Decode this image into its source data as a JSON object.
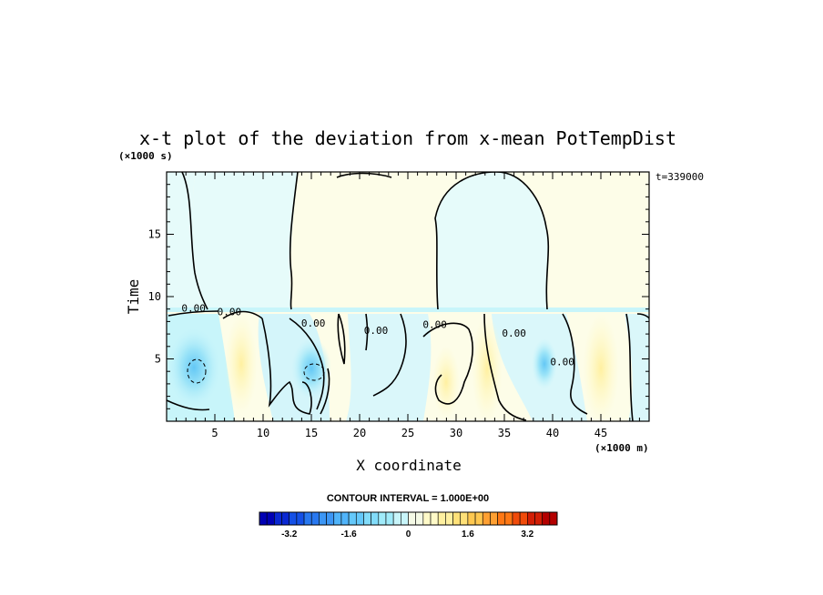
{
  "chart_data": {
    "type": "heatmap",
    "title": "x-t plot of the deviation from x-mean PotTempDist",
    "xlabel": "X coordinate",
    "ylabel": "Time",
    "x_unit": "(×1000 m)",
    "y_unit": "(×1000 s)",
    "annotation": "t=339000",
    "xlim": [
      0,
      50
    ],
    "ylim": [
      0,
      20
    ],
    "x_ticks": [
      5,
      10,
      15,
      20,
      25,
      30,
      35,
      40,
      45
    ],
    "y_ticks": [
      5,
      10,
      15
    ],
    "contour_labels": [
      {
        "text": "0.00",
        "x": 2.8,
        "y": 8.8
      },
      {
        "text": "0.00",
        "x": 6.5,
        "y": 8.5
      },
      {
        "text": "0.00",
        "x": 15.2,
        "y": 7.6
      },
      {
        "text": "0.00",
        "x": 21.7,
        "y": 7.0
      },
      {
        "text": "0.00",
        "x": 27.8,
        "y": 7.5
      },
      {
        "text": "0.00",
        "x": 36.0,
        "y": 6.8
      },
      {
        "text": "0.00",
        "x": 41.0,
        "y": 4.5
      }
    ],
    "colorbar": {
      "title": "CONTOUR INTERVAL = 1.000E+00",
      "range": [
        -4.0,
        4.0
      ],
      "tick_labels": [
        "-3.2",
        "-1.6",
        "0",
        "1.6",
        "3.2"
      ],
      "tick_values": [
        -3.2,
        -1.6,
        0,
        1.6,
        3.2
      ],
      "colors": [
        "#0000b4",
        "#0a28d2",
        "#1450e6",
        "#2878f0",
        "#3c96f5",
        "#50b4fa",
        "#64c8fa",
        "#82dcfa",
        "#a0ebfa",
        "#c8f5fa",
        "#f5fae6",
        "#fffac8",
        "#fff0a0",
        "#ffe178",
        "#ffc850",
        "#ffa032",
        "#ff7814",
        "#f04b0a",
        "#d21e05",
        "#b40000"
      ]
    }
  }
}
